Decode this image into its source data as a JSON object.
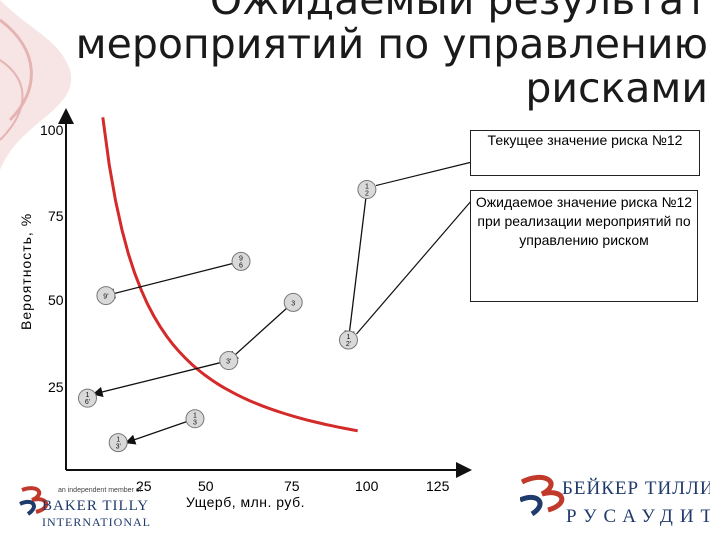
{
  "slide": {
    "title_lines": [
      "Ожидаемый результат",
      "мероприятий по управлению",
      "рисками"
    ]
  },
  "chart_data": {
    "type": "scatter",
    "ylabel": "Вероятность, %",
    "xlabel": "Ущерб, млн. руб.",
    "y_ticks": [
      "100",
      "75",
      "50",
      "25"
    ],
    "x_ticks": [
      "25",
      "50",
      "75",
      "100",
      "125"
    ],
    "xlim": [
      0,
      125
    ],
    "ylim": [
      0,
      100
    ],
    "risk_points_current": [
      {
        "label": "1\n2",
        "x": 98,
        "y": 82
      },
      {
        "label": "9\n6",
        "x": 57,
        "y": 61
      },
      {
        "label": "3",
        "x": 74,
        "y": 49
      }
    ],
    "risk_points_expected": [
      {
        "label": "1\n2'",
        "x": 92,
        "y": 38
      },
      {
        "label": "9'",
        "x": 13,
        "y": 51
      },
      {
        "label": "3'",
        "x": 53,
        "y": 32
      },
      {
        "label": "1\n6'",
        "x": 7,
        "y": 21
      },
      {
        "label": "1\n3",
        "x": 42,
        "y": 15
      },
      {
        "label": "1\n3'",
        "x": 17,
        "y": 8
      }
    ],
    "threshold_curve_color": "#d42a2a"
  },
  "callouts": {
    "current": "Текущее значение риска №12",
    "expected": "Ожидаемое значение риска №12 при реализации мероприятий по управлению риском"
  },
  "logos": {
    "left_tagline": "an independent member of",
    "left_brand": "BAKER TILLY",
    "left_sub": "INTERNATIONAL",
    "right_brand": "БЕЙКЕР ТИЛЛИ",
    "right_sub": "РУСАУДИТ"
  },
  "colors": {
    "accent_red": "#d42a2a",
    "brand_navy": "#1f3a6b"
  }
}
